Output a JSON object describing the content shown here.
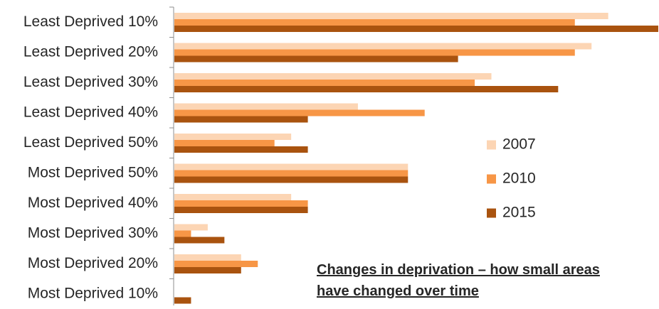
{
  "chart_data": {
    "type": "bar",
    "orientation": "horizontal",
    "title": "",
    "xlabel": "",
    "ylabel": "",
    "categories": [
      "Least Deprived 10%",
      "Least Deprived 20%",
      "Least Deprived 30%",
      "Least Deprived 40%",
      "Least Deprived 50%",
      "Most Deprived 50%",
      "Most Deprived 40%",
      "Most Deprived 30%",
      "Most Deprived 20%",
      "Most Deprived 10%"
    ],
    "series": [
      {
        "name": "2007",
        "color": "#FCD5B4",
        "values": [
          26,
          25,
          19,
          11,
          7,
          14,
          7,
          2,
          4,
          0
        ]
      },
      {
        "name": "2010",
        "color": "#F79646",
        "values": [
          24,
          24,
          18,
          15,
          6,
          14,
          8,
          1,
          5,
          0
        ]
      },
      {
        "name": "2015",
        "color": "#A9530F",
        "values": [
          29,
          17,
          23,
          8,
          8,
          14,
          8,
          3,
          4,
          1
        ]
      }
    ],
    "xlim": [
      0,
      29
    ],
    "grid": false,
    "legend_position": "right",
    "annotation": "Changes in deprivation – how small areas have changed over time",
    "annotation_lines": [
      "Changes in deprivation – how small areas",
      "have changed over time"
    ]
  }
}
